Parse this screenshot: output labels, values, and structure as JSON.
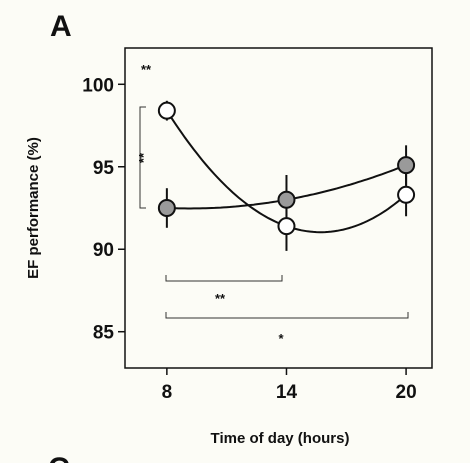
{
  "chart_data": {
    "type": "line",
    "panel_label": "A",
    "next_panel_label": "C",
    "x_label": "Time of day (hours)",
    "y_label": "EF performance (%)",
    "x": [
      8,
      14,
      20
    ],
    "xlim": [
      5.9,
      21.3
    ],
    "xticks": [
      8,
      14,
      20
    ],
    "ylim": [
      82.8,
      102.2
    ],
    "yticks": [
      85,
      90,
      95,
      100
    ],
    "series": [
      {
        "color": "#9a9a9a",
        "values": [
          92.5,
          93.0,
          95.1
        ],
        "errors": [
          1.2,
          1.5,
          1.2
        ]
      },
      {
        "color": "#ffffff",
        "values": [
          98.4,
          91.4,
          93.3
        ],
        "errors": [
          0.6,
          1.5,
          1.3
        ]
      }
    ],
    "annotations": [
      "**",
      "**",
      "**",
      "*"
    ]
  }
}
